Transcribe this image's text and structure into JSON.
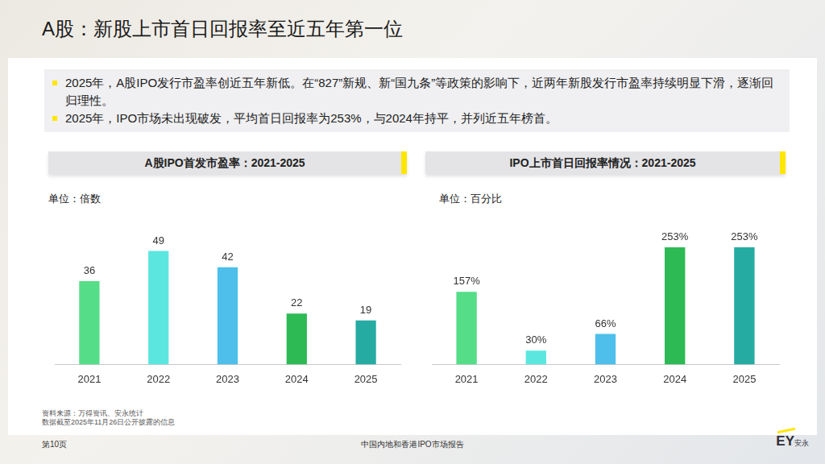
{
  "title": "A股：新股上市首日回报率至近五年第一位",
  "bullets": [
    "2025年，A股IPO发行市盈率创近五年新低。在“827”新规、新“国九条”等政策的影响下，近两年新股发行市盈率持续明显下滑，逐渐回归理性。",
    "2025年，IPO市场未出现破发，平均首日回报率为253%，与2024年持平，并列近五年榜首。"
  ],
  "chart_data": [
    {
      "type": "bar",
      "title": "A股IPO首发市盈率：2021-2025",
      "ylabel": "单位：倍数",
      "categories": [
        "2021",
        "2022",
        "2023",
        "2024",
        "2025"
      ],
      "values": [
        36,
        49,
        42,
        22,
        19
      ],
      "colors": [
        "#55dd88",
        "#5ce6e0",
        "#4dbfea",
        "#2dba55",
        "#26aba3"
      ],
      "ylim": [
        0,
        60
      ],
      "grid": false,
      "data_labels": true,
      "tick_labels": "x"
    },
    {
      "type": "bar",
      "title": "IPO上市首日回报率情况：2021-2025",
      "ylabel": "单位：百分比",
      "categories": [
        "2021",
        "2022",
        "2023",
        "2024",
        "2025"
      ],
      "values": [
        157,
        30,
        66,
        253,
        253
      ],
      "value_labels": [
        "157%",
        "30%",
        "66%",
        "253%",
        "253%"
      ],
      "colors": [
        "#55dd88",
        "#5ce6e0",
        "#4dbfea",
        "#2dba55",
        "#26aba3"
      ],
      "ylim": [
        0,
        300
      ],
      "grid": false,
      "data_labels": true,
      "tick_labels": "x"
    }
  ],
  "source": [
    "资料来源：万得资讯、安永统计",
    "数据截至2025年11月26日公开披露的信息"
  ],
  "footer": {
    "page": "第10页",
    "report": "中国内地和香港IPO市场报告",
    "logo": "EY",
    "logo_sub": "安永"
  }
}
